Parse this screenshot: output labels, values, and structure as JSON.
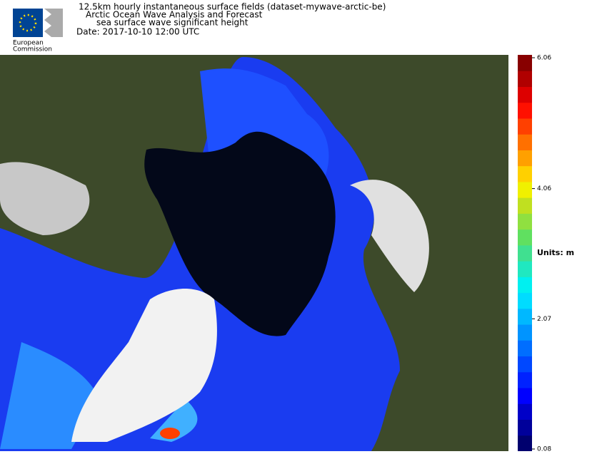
{
  "header": {
    "logo": {
      "lines": [
        "European",
        "Commission"
      ]
    },
    "title_lines": [
      "12.5km hourly instantaneous surface fields (dataset-mywave-arctic-be)",
      "Arctic Ocean Wave Analysis and Forecast",
      "sea surface wave significant height"
    ],
    "date": "Date: 2017-10-10 12:00 UTC"
  },
  "colorbar": {
    "lim": [
      0.08,
      6.06
    ],
    "ticks": [
      6.06,
      4.06,
      2.07,
      0.08
    ],
    "units": "Units: m",
    "colors": [
      "#00006e",
      "#00009a",
      "#0000c8",
      "#0000ff",
      "#0022ff",
      "#0048ff",
      "#006eff",
      "#0094ff",
      "#00b8ff",
      "#00dcff",
      "#00f0f0",
      "#20e8c0",
      "#40e090",
      "#60e060",
      "#90e040",
      "#c0e020",
      "#f0f000",
      "#ffd000",
      "#ffa000",
      "#ff7000",
      "#ff4000",
      "#ff1000",
      "#dd0000",
      "#b00000",
      "#880000"
    ]
  }
}
